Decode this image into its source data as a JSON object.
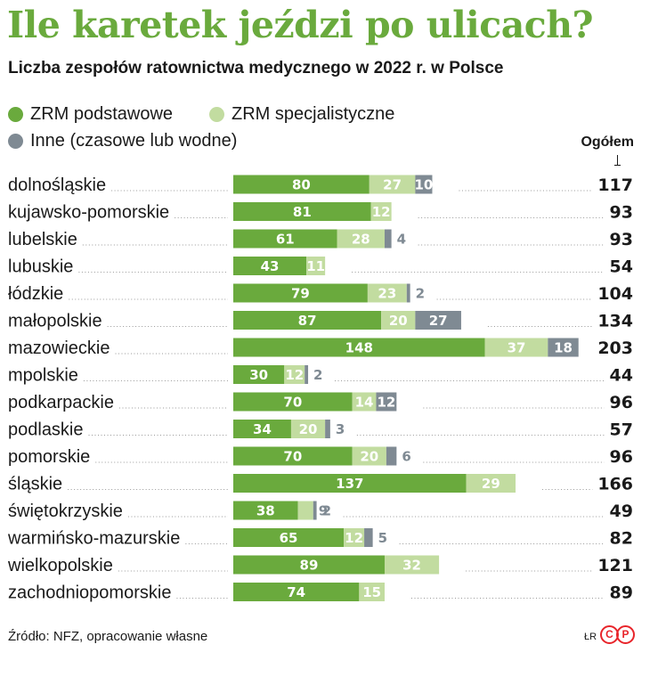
{
  "header": {
    "title": "Ile karetek jeździ po ulicach?",
    "subtitle": "Liczba zespołów ratownictwa medycznego w 2022 r. w Polsce"
  },
  "legend": {
    "basic": "ZRM podstawowe",
    "specialist": "ZRM specjalistyczne",
    "other": "Inne (czasowe lub wodne)"
  },
  "total_header": "Ogółem",
  "colors": {
    "basic": "#6aaa3d",
    "specialist": "#c2dca0",
    "other": "#7f8a93"
  },
  "chart_data": {
    "type": "bar",
    "orientation": "horizontal",
    "stacked": true,
    "categories": [
      "dolnośląskie",
      "kujawsko-pomorskie",
      "lubelskie",
      "lubuskie",
      "łódzkie",
      "małopolskie",
      "mazowieckie",
      "mpolskie",
      "podkarpackie",
      "podlaskie",
      "pomorskie",
      "śląskie",
      "świętokrzyskie",
      "warmińsko-mazurskie",
      "wielkopolskie",
      "zachodniopomorskie"
    ],
    "series": [
      {
        "name": "ZRM podstawowe",
        "values": [
          80,
          81,
          61,
          43,
          79,
          87,
          148,
          30,
          70,
          34,
          70,
          137,
          38,
          65,
          89,
          74
        ]
      },
      {
        "name": "ZRM specjalistyczne",
        "values": [
          27,
          12,
          28,
          11,
          23,
          20,
          37,
          12,
          14,
          20,
          20,
          29,
          9,
          12,
          32,
          15
        ]
      },
      {
        "name": "Inne (czasowe lub wodne)",
        "values": [
          10,
          null,
          4,
          null,
          2,
          27,
          18,
          2,
          12,
          3,
          6,
          null,
          2,
          5,
          null,
          null
        ]
      }
    ],
    "totals": [
      117,
      93,
      93,
      54,
      104,
      134,
      203,
      44,
      96,
      57,
      96,
      166,
      49,
      82,
      121,
      89
    ],
    "legend_position": "top-left",
    "grid": false
  },
  "source": "Źródło: NFZ, opracowanie własne",
  "author": "ŁR",
  "logo": [
    "C",
    "P"
  ]
}
